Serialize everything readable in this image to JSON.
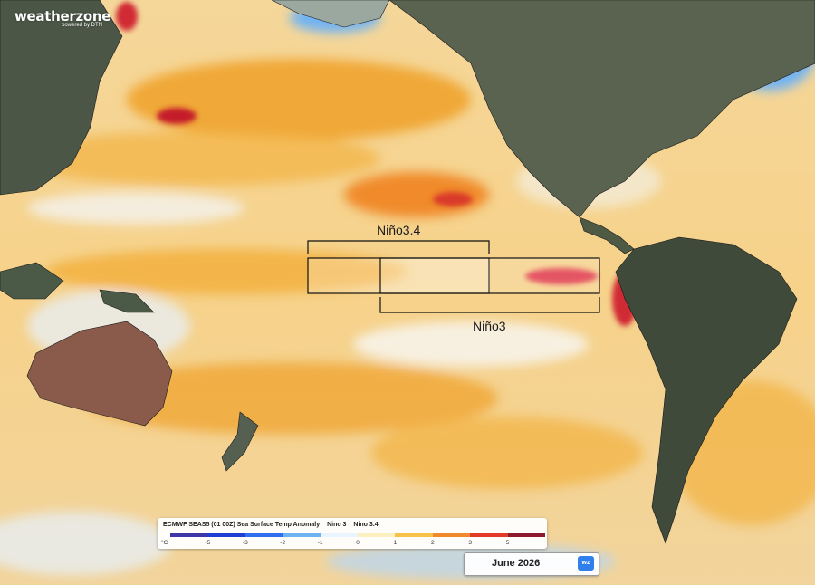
{
  "brand": {
    "name": "weatherzone",
    "tagline": "powered by DTN"
  },
  "regions": [
    {
      "id": "nino34",
      "label": "Niño3.4"
    },
    {
      "id": "nino3",
      "label": "Niño3"
    }
  ],
  "legend": {
    "title": "ECMWF SEAS5 (01 00Z) Sea Surface Temp Anomaly",
    "toggles": [
      "Nino 3",
      "Nino 3.4"
    ],
    "unit": "°C",
    "ticks": [
      "-5",
      "-3",
      "-2",
      "-1",
      "0",
      "1",
      "2",
      "3",
      "5"
    ],
    "colors": [
      "#3d36a6",
      "#1f3fd4",
      "#2f6ff0",
      "#6fb2f3",
      "#e9f4ff",
      "#fdf0c0",
      "#f7c24a",
      "#f08a2a",
      "#e33a2a",
      "#8d1a2f"
    ]
  },
  "forecast": {
    "month": "June 2026",
    "badge": "wz"
  }
}
